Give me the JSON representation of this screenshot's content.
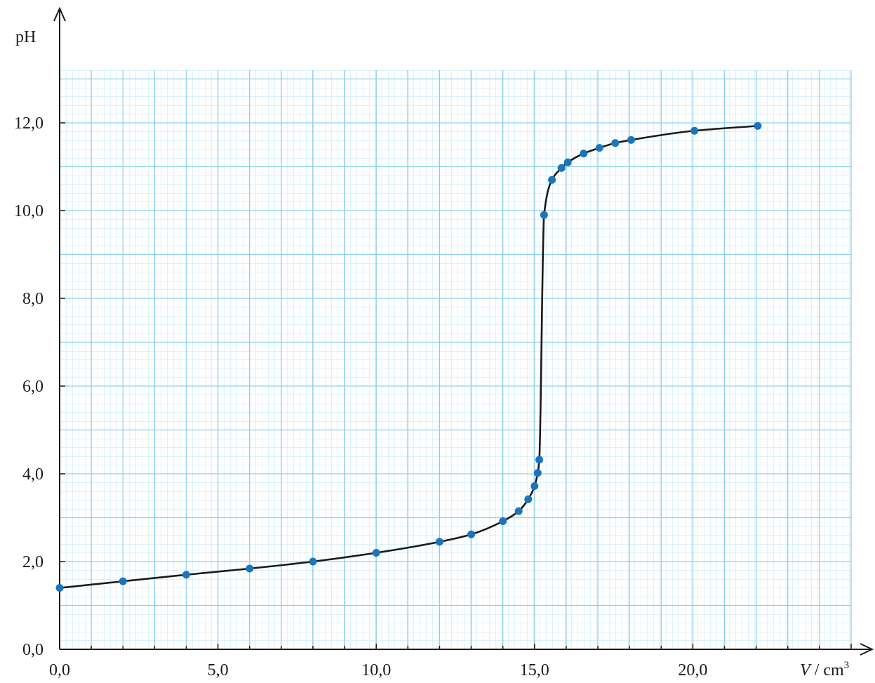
{
  "chart_data": {
    "type": "scatter",
    "title": "",
    "xlabel_italic": "V",
    "xlabel_rest": " / cm",
    "xlabel_sup": "3",
    "ylabel": "pH",
    "xlim": [
      0,
      25
    ],
    "ylim": [
      0,
      13.2
    ],
    "x_ticks": [
      0,
      5,
      10,
      15,
      20
    ],
    "x_tick_labels": [
      "0,0",
      "5,0",
      "10,0",
      "15,0",
      "20,0"
    ],
    "y_ticks": [
      0,
      2,
      4,
      6,
      8,
      10,
      12
    ],
    "y_tick_labels": [
      "0,0",
      "2,0",
      "4,0",
      "6,0",
      "8,0",
      "10,0",
      "12,0"
    ],
    "grid": true,
    "legend": "none",
    "colors": {
      "grid_major": "#8fd0ef",
      "grid_minor": "#bfe6f7",
      "point": "#1b75bc",
      "curve": "#1a1a1a",
      "axis": "#1a1a1a"
    },
    "series": [
      {
        "x": [
          0,
          2,
          4,
          6,
          8,
          10,
          12,
          13,
          14,
          14.5,
          14.8,
          15.0,
          15.1,
          15.15,
          15.3,
          15.55,
          15.85,
          16.05,
          16.55,
          17.05,
          17.55,
          18.05,
          20.05,
          22.05
        ],
        "y": [
          1.4,
          1.55,
          1.7,
          1.84,
          2.0,
          2.2,
          2.45,
          2.62,
          2.92,
          3.15,
          3.42,
          3.72,
          4.02,
          4.32,
          9.9,
          10.7,
          10.97,
          11.1,
          11.3,
          11.43,
          11.54,
          11.61,
          11.82,
          11.93
        ]
      }
    ]
  }
}
